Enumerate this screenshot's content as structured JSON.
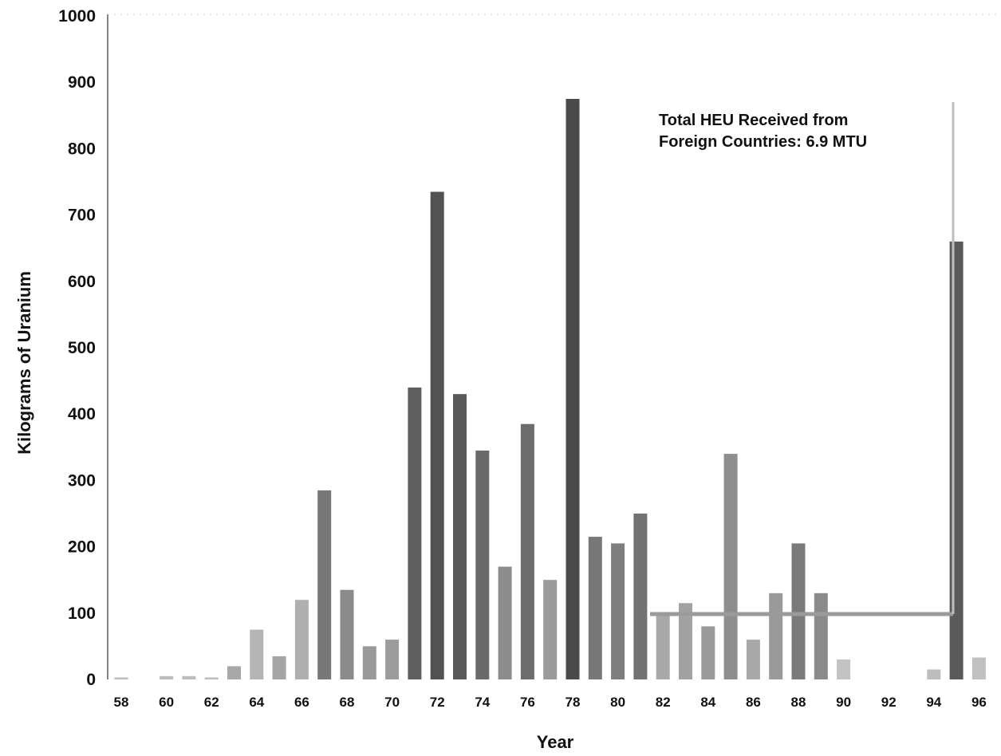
{
  "chart_data": {
    "type": "bar",
    "title": "",
    "xlabel": "Year",
    "ylabel": "Kilograms of Uranium",
    "ylim": [
      0,
      1000
    ],
    "yticks": [
      0,
      100,
      200,
      300,
      400,
      500,
      600,
      700,
      800,
      900,
      1000
    ],
    "x_tick_labels": [
      "58",
      "60",
      "62",
      "64",
      "66",
      "68",
      "70",
      "72",
      "74",
      "76",
      "78",
      "80",
      "82",
      "84",
      "86",
      "88",
      "90",
      "92",
      "94",
      "96"
    ],
    "categories": [
      "58",
      "59",
      "60",
      "61",
      "62",
      "63",
      "64",
      "65",
      "66",
      "67",
      "68",
      "69",
      "70",
      "71",
      "72",
      "73",
      "74",
      "75",
      "76",
      "77",
      "78",
      "79",
      "80",
      "81",
      "82",
      "83",
      "84",
      "85",
      "86",
      "87",
      "88",
      "89",
      "90",
      "91",
      "92",
      "93",
      "94",
      "95",
      "96"
    ],
    "values": [
      3,
      0,
      5,
      5,
      3,
      20,
      75,
      35,
      120,
      285,
      135,
      50,
      60,
      440,
      735,
      430,
      345,
      170,
      385,
      150,
      875,
      215,
      205,
      250,
      100,
      115,
      80,
      340,
      60,
      130,
      205,
      130,
      30,
      0,
      0,
      0,
      15,
      660,
      33
    ],
    "shades": [
      "#bdbdbd",
      "#bdbdbd",
      "#bdbdbd",
      "#bdbdbd",
      "#bdbdbd",
      "#a8a8a8",
      "#b4b4b4",
      "#a4a4a4",
      "#b0b0b0",
      "#777777",
      "#8a8a8a",
      "#999999",
      "#9c9c9c",
      "#5e5e5e",
      "#525252",
      "#5a5a5a",
      "#6a6a6a",
      "#8c8c8c",
      "#6c6c6c",
      "#9a9a9a",
      "#4a4a4a",
      "#777777",
      "#7e7e7e",
      "#727272",
      "#a9a9a9",
      "#a2a2a2",
      "#9a9a9a",
      "#8e8e8e",
      "#a9a9a9",
      "#9a9a9a",
      "#7a7a7a",
      "#8a8a8a",
      "#c2c2c2",
      "#ffffff",
      "#ffffff",
      "#ffffff",
      "#bdbdbd",
      "#5a5a5a",
      "#c0c0c0"
    ],
    "grid": false,
    "legend": "none",
    "annotation": {
      "lines": [
        "Total HEU Received from",
        "Foreign Countries:  6.9 MTU"
      ],
      "placement": "top-right"
    }
  }
}
